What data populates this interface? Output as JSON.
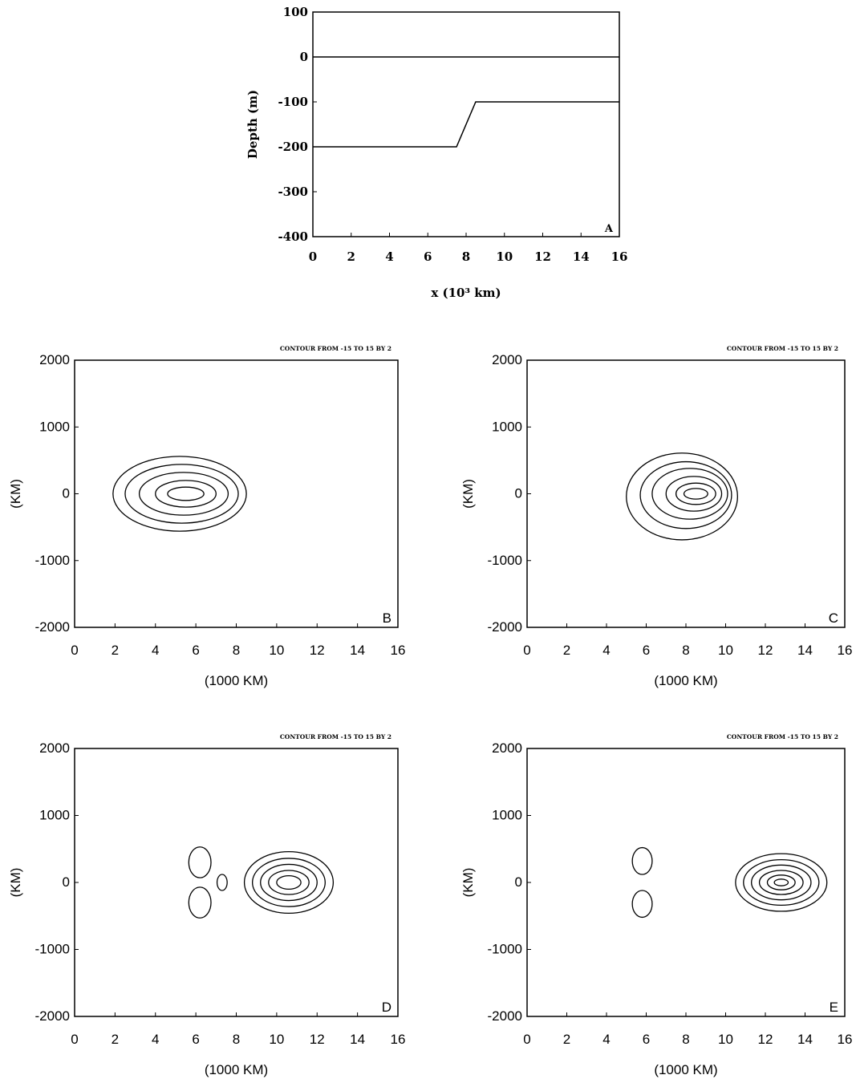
{
  "chart_data": [
    {
      "id": "A",
      "type": "line",
      "panel_label": "A",
      "xlabel": "x (10³ km)",
      "ylabel": "Depth (m)",
      "xlim": [
        0,
        16
      ],
      "ylim": [
        -400,
        100
      ],
      "xticks": [
        0,
        2,
        4,
        6,
        8,
        10,
        12,
        14,
        16
      ],
      "yticks": [
        -400,
        -300,
        -200,
        -100,
        0,
        100
      ],
      "series": [
        {
          "x": [
            0,
            16
          ],
          "y": [
            0,
            0
          ]
        },
        {
          "x": [
            0,
            7.5,
            8.5,
            16
          ],
          "y": [
            -200,
            -200,
            -100,
            -100
          ]
        }
      ]
    },
    {
      "id": "B",
      "type": "contour",
      "panel_label": "B",
      "title": "CONTOUR FROM -15 TO 15 BY 2",
      "xlabel": "(1000 KM)",
      "ylabel": "(KM)",
      "xlim": [
        0,
        16
      ],
      "ylim": [
        -2000,
        2000
      ],
      "xticks": [
        0,
        2,
        4,
        6,
        8,
        10,
        12,
        14,
        16
      ],
      "yticks": [
        -2000,
        -1000,
        0,
        1000,
        2000
      ],
      "contour_levels": {
        "min": -15,
        "max": 15,
        "step": 2
      },
      "contours": [
        {
          "cx": 5.2,
          "cy": 0,
          "rx": 3.3,
          "ry": 560
        },
        {
          "cx": 5.3,
          "cy": 0,
          "rx": 2.8,
          "ry": 440
        },
        {
          "cx": 5.4,
          "cy": 0,
          "rx": 2.2,
          "ry": 320
        },
        {
          "cx": 5.5,
          "cy": 0,
          "rx": 1.5,
          "ry": 200
        },
        {
          "cx": 5.5,
          "cy": 0,
          "rx": 0.9,
          "ry": 100
        }
      ]
    },
    {
      "id": "C",
      "type": "contour",
      "panel_label": "C",
      "title": "CONTOUR FROM -15 TO 15 BY 2",
      "xlabel": "(1000 KM)",
      "ylabel": "(KM)",
      "xlim": [
        0,
        16
      ],
      "ylim": [
        -2000,
        2000
      ],
      "xticks": [
        0,
        2,
        4,
        6,
        8,
        10,
        12,
        14,
        16
      ],
      "yticks": [
        -2000,
        -1000,
        0,
        1000,
        2000
      ],
      "contour_levels": {
        "min": -15,
        "max": 15,
        "step": 2
      },
      "contours": [
        {
          "cx": 7.8,
          "cy": -40,
          "rx": 2.8,
          "ry": 650
        },
        {
          "cx": 8.0,
          "cy": -20,
          "rx": 2.3,
          "ry": 500
        },
        {
          "cx": 8.2,
          "cy": 0,
          "rx": 1.9,
          "ry": 380
        },
        {
          "cx": 8.4,
          "cy": 0,
          "rx": 1.4,
          "ry": 260
        },
        {
          "cx": 8.5,
          "cy": 0,
          "rx": 1.0,
          "ry": 160
        },
        {
          "cx": 8.5,
          "cy": 0,
          "rx": 0.6,
          "ry": 80
        }
      ]
    },
    {
      "id": "D",
      "type": "contour",
      "panel_label": "D",
      "title": "CONTOUR FROM -15 TO 15 BY 2",
      "xlabel": "(1000 KM)",
      "ylabel": "(KM)",
      "xlim": [
        0,
        16
      ],
      "ylim": [
        -2000,
        2000
      ],
      "xticks": [
        0,
        2,
        4,
        6,
        8,
        10,
        12,
        14,
        16
      ],
      "yticks": [
        -2000,
        -1000,
        0,
        1000,
        2000
      ],
      "contour_levels": {
        "min": -15,
        "max": 15,
        "step": 2
      },
      "contours": [
        {
          "cx": 10.6,
          "cy": 0,
          "rx": 2.2,
          "ry": 460
        },
        {
          "cx": 10.6,
          "cy": 0,
          "rx": 1.8,
          "ry": 360
        },
        {
          "cx": 10.6,
          "cy": 0,
          "rx": 1.4,
          "ry": 270
        },
        {
          "cx": 10.6,
          "cy": 0,
          "rx": 1.0,
          "ry": 180
        },
        {
          "cx": 10.6,
          "cy": 0,
          "rx": 0.6,
          "ry": 100
        },
        {
          "cx": 6.2,
          "cy": 300,
          "rx": 0.55,
          "ry": 230
        },
        {
          "cx": 6.2,
          "cy": -300,
          "rx": 0.55,
          "ry": 230
        },
        {
          "cx": 7.3,
          "cy": 0,
          "rx": 0.25,
          "ry": 120
        }
      ]
    },
    {
      "id": "E",
      "type": "contour",
      "panel_label": "E",
      "title": "CONTOUR FROM -15 TO 15 BY 2",
      "xlabel": "(1000 KM)",
      "ylabel": "(KM)",
      "xlim": [
        0,
        16
      ],
      "ylim": [
        -2000,
        2000
      ],
      "xticks": [
        0,
        2,
        4,
        6,
        8,
        10,
        12,
        14,
        16
      ],
      "yticks": [
        -2000,
        -1000,
        0,
        1000,
        2000
      ],
      "contour_levels": {
        "min": -15,
        "max": 15,
        "step": 2
      },
      "contours": [
        {
          "cx": 12.8,
          "cy": 0,
          "rx": 2.3,
          "ry": 430
        },
        {
          "cx": 12.8,
          "cy": 0,
          "rx": 1.9,
          "ry": 340
        },
        {
          "cx": 12.8,
          "cy": 0,
          "rx": 1.5,
          "ry": 260
        },
        {
          "cx": 12.8,
          "cy": 0,
          "rx": 1.1,
          "ry": 180
        },
        {
          "cx": 12.8,
          "cy": 0,
          "rx": 0.7,
          "ry": 110
        },
        {
          "cx": 12.8,
          "cy": 0,
          "rx": 0.35,
          "ry": 50
        },
        {
          "cx": 5.8,
          "cy": 320,
          "rx": 0.5,
          "ry": 200
        },
        {
          "cx": 5.8,
          "cy": -320,
          "rx": 0.5,
          "ry": 200
        }
      ]
    }
  ]
}
